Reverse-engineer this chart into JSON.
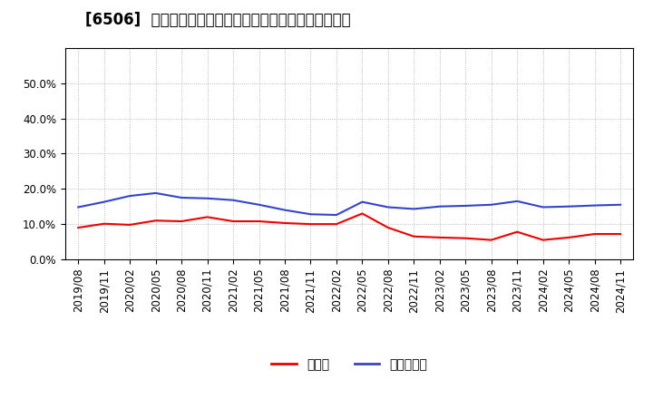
{
  "title": "[6506]  現預金、有利子負債の総資産に対する比率の推移",
  "ylim": [
    0.0,
    0.6
  ],
  "yticks": [
    0.0,
    0.1,
    0.2,
    0.3,
    0.4,
    0.5
  ],
  "x_labels": [
    "2019/08",
    "2019/11",
    "2020/02",
    "2020/05",
    "2020/08",
    "2020/11",
    "2021/02",
    "2021/05",
    "2021/08",
    "2021/11",
    "2022/02",
    "2022/05",
    "2022/08",
    "2022/11",
    "2023/02",
    "2023/05",
    "2023/08",
    "2023/11",
    "2024/02",
    "2024/05",
    "2024/08",
    "2024/11"
  ],
  "cash_values": [
    0.09,
    0.101,
    0.098,
    0.11,
    0.108,
    0.12,
    0.108,
    0.108,
    0.103,
    0.1,
    0.1,
    0.13,
    0.09,
    0.065,
    0.062,
    0.06,
    0.055,
    0.078,
    0.055,
    0.062,
    0.072,
    0.072
  ],
  "debt_values": [
    0.148,
    0.163,
    0.18,
    0.188,
    0.175,
    0.173,
    0.168,
    0.155,
    0.14,
    0.128,
    0.126,
    0.163,
    0.148,
    0.143,
    0.15,
    0.152,
    0.155,
    0.165,
    0.148,
    0.15,
    0.153,
    0.155
  ],
  "cash_color": "#ee0000",
  "debt_color": "#3344cc",
  "legend_cash": "現預金",
  "legend_debt": "有利子負債",
  "bg_color": "#ffffff",
  "grid_color": "#aaaaaa",
  "title_fontsize": 12,
  "tick_fontsize": 8.5,
  "legend_fontsize": 10
}
